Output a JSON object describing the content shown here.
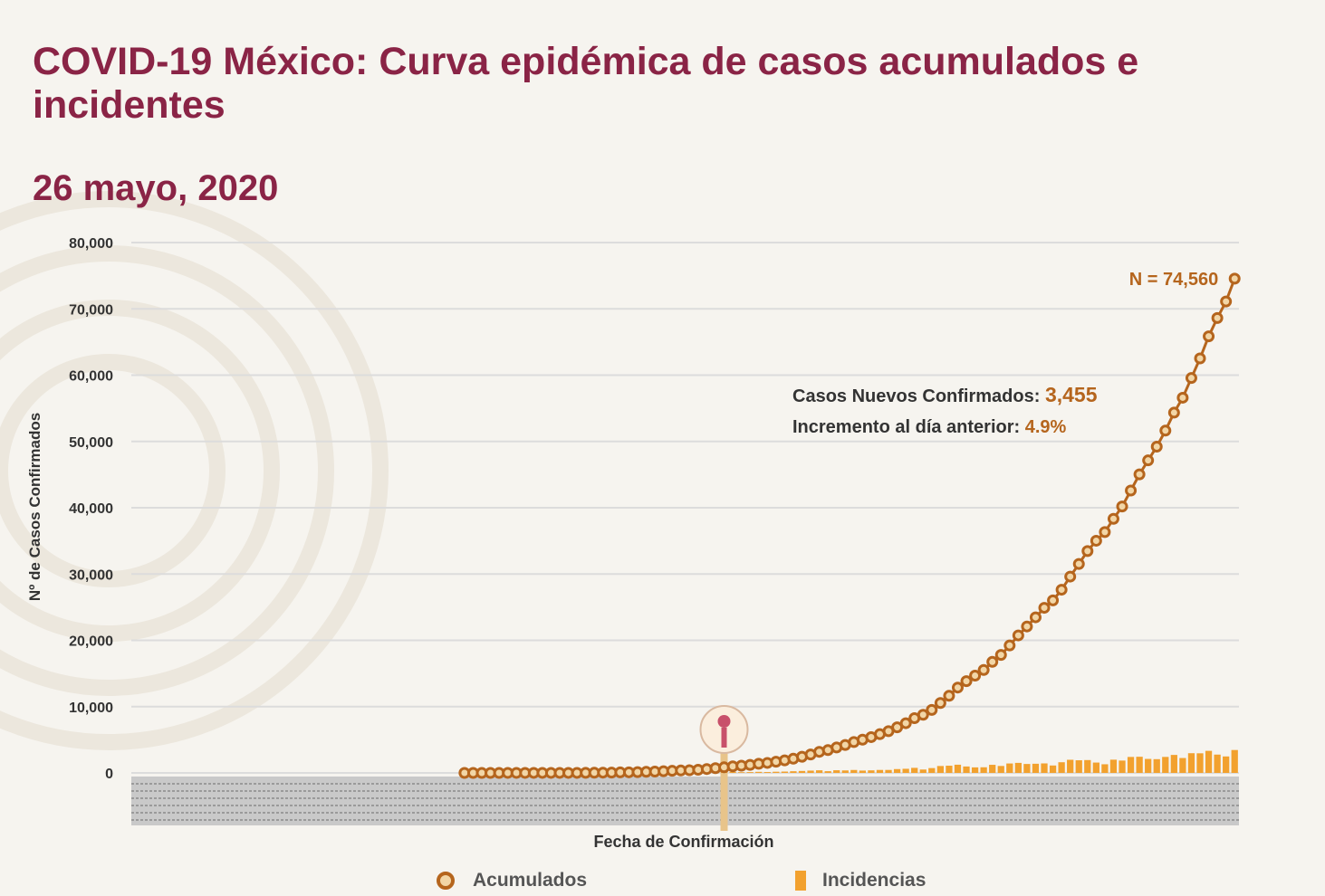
{
  "header": {
    "title": "COVID-19 México: Curva epidémica de casos acumulados e incidentes",
    "date": "26 mayo, 2020"
  },
  "chart_data": {
    "type": "line",
    "title": "COVID-19 México: Curva epidémica de casos acumulados e incidentes",
    "xlabel": "Fecha de Confirmación",
    "ylabel": "Nº de Casos Confirmados",
    "ylim": [
      0,
      80000
    ],
    "yticks": [
      "80,000",
      "70,000",
      "60,000",
      "50,000",
      "40,000",
      "30,000",
      "20,000",
      "10,000",
      "0"
    ],
    "grid": true,
    "legend_position": "bottom",
    "series": [
      {
        "name": "Acumulados",
        "type": "line-marker",
        "color": "#b5651d",
        "values": [
          1,
          1,
          2,
          4,
          4,
          5,
          5,
          5,
          6,
          7,
          7,
          7,
          7,
          8,
          12,
          26,
          41,
          53,
          82,
          93,
          118,
          164,
          203,
          251,
          316,
          367,
          405,
          475,
          585,
          717,
          848,
          993,
          1094,
          1215,
          1378,
          1510,
          1688,
          1890,
          2143,
          2439,
          2785,
          3181,
          3441,
          3844,
          4219,
          4661,
          5014,
          5399,
          5847,
          6297,
          6875,
          7497,
          8261,
          8772,
          9501,
          10544,
          11633,
          12872,
          13842,
          14677,
          15529,
          16752,
          17799,
          19224,
          20739,
          22088,
          23471,
          24905,
          26025,
          27634,
          29616,
          31522,
          33460,
          35022,
          36327,
          38324,
          40186,
          42595,
          45032,
          47144,
          49219,
          51633,
          54346,
          56594,
          59567,
          62527,
          65856,
          68620,
          71105,
          74560
        ]
      },
      {
        "name": "Incidencias",
        "type": "bar",
        "color": "#f2a12e",
        "values": [
          1,
          0,
          1,
          2,
          0,
          1,
          0,
          0,
          1,
          1,
          0,
          0,
          0,
          1,
          4,
          14,
          15,
          12,
          29,
          11,
          25,
          46,
          39,
          48,
          65,
          51,
          38,
          70,
          110,
          132,
          131,
          145,
          101,
          121,
          163,
          132,
          178,
          202,
          253,
          296,
          346,
          396,
          260,
          403,
          375,
          442,
          353,
          385,
          448,
          450,
          578,
          622,
          764,
          511,
          729,
          1043,
          1089,
          1239,
          970,
          835,
          852,
          1223,
          1047,
          1425,
          1515,
          1349,
          1383,
          1434,
          1120,
          1609,
          1982,
          1906,
          1938,
          1562,
          1305,
          1997,
          1862,
          2409,
          2437,
          2112,
          2075,
          2414,
          2713,
          2248,
          2973,
          2960,
          3329,
          2764,
          2485,
          3455
        ]
      }
    ],
    "annotations": {
      "total_label": "N = 74,560",
      "new_cases_label": "Casos Nuevos Confirmados:",
      "new_cases_value": "3,455",
      "increase_label": "Incremento al día anterior:",
      "increase_value": "4.9%"
    }
  },
  "legend": {
    "accumulated": "Acumulados",
    "incidences": "Incidencias"
  },
  "colors": {
    "title": "#8a2446",
    "accumulated": "#b5651d",
    "incidences": "#f2a12e",
    "grid": "#dcdcdc"
  }
}
